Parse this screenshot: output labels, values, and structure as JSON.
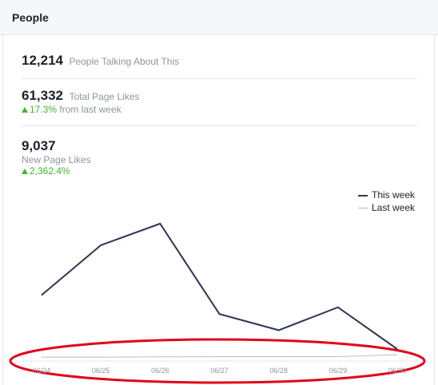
{
  "header": {
    "title": "People"
  },
  "stats": {
    "talking": {
      "value": "12,214",
      "label": "People Talking About This"
    },
    "page_likes": {
      "value": "61,332",
      "label": "Total Page Likes",
      "change": "17.3%",
      "change_suffix": "from last week"
    },
    "new_likes": {
      "value": "9,037",
      "label": "New Page Likes",
      "change": "2,362.4%"
    }
  },
  "colors": {
    "this_week": "#2b3752",
    "last_week": "#c8ccd2",
    "positive": "#42b72a",
    "highlight": "#e2001a"
  },
  "chart_data": {
    "type": "line",
    "categories": [
      "06/24",
      "06/25",
      "06/26",
      "06/27",
      "06/28",
      "06/29",
      "06/30"
    ],
    "series": [
      {
        "name": "This week",
        "values": [
          1550,
          3400,
          4200,
          850,
          250,
          1100,
          -450
        ]
      },
      {
        "name": "Last week",
        "values": [
          -750,
          -750,
          -740,
          -730,
          -730,
          -730,
          -660
        ]
      }
    ],
    "ylim": [
      -1000,
      5000
    ],
    "grid": false,
    "legend": "top-right"
  }
}
